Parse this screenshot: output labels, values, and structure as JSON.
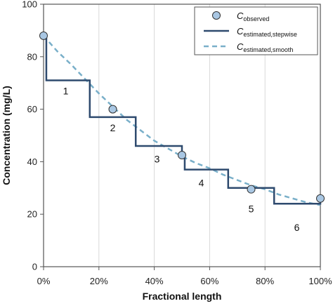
{
  "chart_data": {
    "type": "line",
    "xlabel": "Fractional length",
    "ylabel": "Concentration (mg/L)",
    "xlim": [
      0,
      100
    ],
    "ylim": [
      0,
      100
    ],
    "x_ticks": [
      0,
      20,
      40,
      60,
      80,
      100
    ],
    "x_tick_labels": [
      "0%",
      "20%",
      "40%",
      "60%",
      "80%",
      "100%"
    ],
    "y_ticks": [
      0,
      20,
      40,
      60,
      80,
      100
    ],
    "y_tick_labels": [
      "0",
      "20",
      "40",
      "60",
      "80",
      "100"
    ],
    "grid": "vertical",
    "legend_position": "top-right",
    "series": [
      {
        "name": "C_observed",
        "legend_main": "C",
        "legend_sub": "observed",
        "kind": "markers",
        "color": "#a9c7e3",
        "x": [
          0,
          25,
          50,
          75,
          100
        ],
        "y": [
          88,
          60,
          42.5,
          29.5,
          26
        ]
      },
      {
        "name": "C_estimated,stepwise",
        "legend_main": "C",
        "legend_sub": "estimated,stepwise",
        "kind": "step",
        "color": "#2e4a6e",
        "x": [
          0,
          1,
          1,
          16.7,
          16.7,
          33.3,
          33.3,
          50,
          50,
          51,
          51,
          66.7,
          66.7,
          83.3,
          83.3,
          100,
          100
        ],
        "y": [
          88,
          88,
          71,
          71,
          57,
          57,
          46,
          46,
          42.5,
          42.5,
          37,
          37,
          30,
          30,
          24,
          24,
          26
        ]
      },
      {
        "name": "C_estimated,smooth",
        "legend_main": "C",
        "legend_sub": "estimated,smooth",
        "kind": "dashed",
        "color": "#79afc9",
        "x": [
          0,
          5,
          10,
          15,
          20,
          25,
          30,
          35,
          40,
          45,
          50,
          55,
          60,
          65,
          70,
          75,
          80,
          85,
          90,
          95,
          100
        ],
        "y": [
          88,
          82,
          77,
          71.5,
          66,
          61,
          56,
          52,
          48,
          45,
          42,
          39.5,
          37.5,
          35,
          33,
          31,
          29.5,
          27.5,
          26,
          24.5,
          23.5
        ]
      }
    ],
    "segment_labels": [
      {
        "text": "1",
        "x": 8,
        "y": 67
      },
      {
        "text": "2",
        "x": 25,
        "y": 53
      },
      {
        "text": "3",
        "x": 41,
        "y": 41
      },
      {
        "text": "4",
        "x": 57,
        "y": 32
      },
      {
        "text": "5",
        "x": 75,
        "y": 22
      },
      {
        "text": "6",
        "x": 91.5,
        "y": 15
      }
    ]
  }
}
